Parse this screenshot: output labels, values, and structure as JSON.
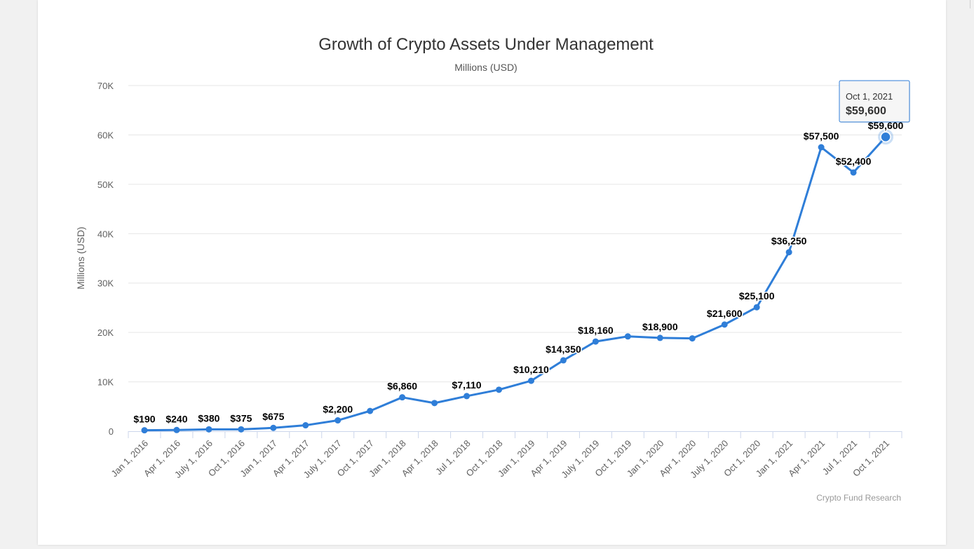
{
  "chart_data": {
    "type": "line",
    "title": "Growth of Crypto Assets Under Management",
    "subtitle": "Millions (USD)",
    "ylabel": "Millions (USD)",
    "xlabel": "",
    "ylim": [
      0,
      70000
    ],
    "yticks": [
      0,
      10000,
      20000,
      30000,
      40000,
      50000,
      60000,
      70000
    ],
    "ytick_labels": [
      "0",
      "10K",
      "20K",
      "30K",
      "40K",
      "50K",
      "60K",
      "70K"
    ],
    "grid": true,
    "legend": "none",
    "credits": "Crypto Fund Research",
    "color": "#2f7ed8",
    "categories": [
      "Jan 1, 2016",
      "Apr 1, 2016",
      "July 1, 2016",
      "Oct 1, 2016",
      "Jan 1, 2017",
      "Apr 1, 2017",
      "July 1, 2017",
      "Oct 1, 2017",
      "Jan 1, 2018",
      "Apr 1, 2018",
      "Jul 1, 2018",
      "Oct 1, 2018",
      "Jan 1, 2019",
      "Apr 1, 2019",
      "July 1, 2019",
      "Oct 1, 2019",
      "Jan 1, 2020",
      "Apr 1, 2020",
      "July 1, 2020",
      "Oct 1, 2020",
      "Jan 1, 2021",
      "Apr 1, 2021",
      "Jul 1, 2021",
      "Oct 1, 2021"
    ],
    "values": [
      190,
      240,
      380,
      375,
      675,
      1200,
      2200,
      4100,
      6860,
      5700,
      7110,
      8400,
      10210,
      14350,
      18160,
      19200,
      18900,
      18800,
      21600,
      25100,
      36250,
      57500,
      52400,
      59600
    ],
    "data_labels": [
      "$190",
      "$240",
      "$380",
      "$375",
      "$675",
      "",
      "$2,200",
      "",
      "$6,860",
      "",
      "$7,110",
      "",
      "$10,210",
      "$14,350",
      "$18,160",
      "",
      "$18,900",
      "",
      "$21,600",
      "$25,100",
      "$36,250",
      "$57,500",
      "$52,400",
      "$59,600"
    ],
    "tooltip": {
      "date": "Oct 1, 2021",
      "value": "$59,600",
      "index": 23
    }
  }
}
